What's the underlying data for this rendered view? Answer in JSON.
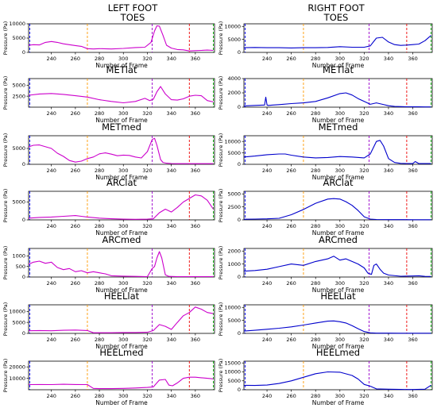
{
  "columns": [
    {
      "title_line1": "LEFT FOOT",
      "title_line2": "TOES",
      "color": "#cc00cc"
    },
    {
      "title_line1": "RIGHT FOOT",
      "title_line2": "TOES",
      "color": "#0000cc"
    }
  ],
  "x_axis": {
    "label": "Number of Frame",
    "range": [
      221,
      376
    ],
    "ticks": [
      240,
      260,
      280,
      300,
      320,
      340,
      360
    ]
  },
  "y_axis_label": "Pressure (Pa)",
  "event_lines": [
    {
      "x": 222,
      "color": "#0000ff",
      "style": "dashed"
    },
    {
      "x": 270,
      "color": "#ff9900",
      "style": "dashed"
    },
    {
      "x": 324,
      "color": "#9900cc",
      "style": "dashed"
    },
    {
      "x": 355,
      "color": "#ee0000",
      "style": "dashed"
    },
    {
      "x": 375,
      "color": "#00aa00",
      "style": "dashed"
    }
  ],
  "chart_data": [
    {
      "type": "line",
      "column": "left",
      "row_title": "",
      "ylabel": "Pressure (Pa)",
      "xlabel": "",
      "ylim": [
        0,
        10000
      ],
      "yticks": [
        0,
        5000,
        10000
      ],
      "series": [
        {
          "x": [
            221,
            225,
            230,
            235,
            240,
            245,
            250,
            255,
            260,
            265,
            270,
            275,
            280,
            290,
            300,
            310,
            318,
            323,
            326,
            328,
            330,
            333,
            336,
            340,
            345,
            350,
            355,
            360,
            365,
            370,
            375
          ],
          "y": [
            2500,
            2700,
            2600,
            3500,
            3800,
            3500,
            3000,
            2700,
            2400,
            2100,
            1300,
            1200,
            1300,
            1200,
            1400,
            1700,
            1800,
            3500,
            7500,
            9300,
            9200,
            6000,
            2500,
            1500,
            1000,
            900,
            500,
            600,
            700,
            800,
            700
          ]
        }
      ]
    },
    {
      "type": "line",
      "column": "right",
      "row_title": "",
      "ylabel": "Pressure (Pa)",
      "xlabel": "",
      "ylim": [
        0,
        11000
      ],
      "yticks": [
        0,
        5000,
        10000
      ],
      "series": [
        {
          "x": [
            221,
            230,
            240,
            250,
            260,
            270,
            280,
            290,
            300,
            310,
            320,
            325,
            330,
            335,
            340,
            345,
            350,
            355,
            360,
            365,
            370,
            375
          ],
          "y": [
            1800,
            1900,
            1800,
            1800,
            1700,
            1800,
            1800,
            1900,
            2200,
            2000,
            2000,
            2500,
            5500,
            5800,
            4000,
            3000,
            2700,
            2800,
            3000,
            3200,
            4500,
            6500
          ]
        }
      ]
    },
    {
      "type": "line",
      "column": "left",
      "row_title": "METlat",
      "ylabel": "Pressure (Pa)",
      "xlabel": "",
      "ylim": [
        0,
        6500
      ],
      "yticks": [
        2500,
        5000
      ],
      "series": [
        {
          "x": [
            221,
            230,
            240,
            250,
            260,
            270,
            280,
            290,
            300,
            310,
            318,
            322,
            325,
            328,
            331,
            335,
            340,
            345,
            350,
            355,
            360,
            365,
            370,
            375
          ],
          "y": [
            2700,
            3000,
            3100,
            2900,
            2600,
            2300,
            1700,
            1300,
            1000,
            1300,
            2000,
            1500,
            1800,
            3500,
            4700,
            3000,
            1700,
            1600,
            1900,
            2500,
            2700,
            2600,
            1500,
            1200
          ]
        }
      ]
    },
    {
      "type": "line",
      "column": "right",
      "row_title": "METlat",
      "ylabel": "Pressure (Pa)",
      "xlabel": "",
      "ylim": [
        0,
        4000
      ],
      "yticks": [
        0,
        2000,
        4000
      ],
      "series": [
        {
          "x": [
            221,
            230,
            238,
            239,
            240,
            241,
            245,
            250,
            260,
            270,
            280,
            290,
            300,
            305,
            310,
            315,
            320,
            325,
            330,
            335,
            340,
            345,
            355,
            360,
            365,
            370,
            375
          ],
          "y": [
            180,
            250,
            300,
            1400,
            300,
            250,
            300,
            350,
            500,
            600,
            800,
            1300,
            1900,
            2000,
            1700,
            1200,
            800,
            400,
            600,
            400,
            200,
            100,
            60,
            50,
            40,
            30,
            30
          ]
        }
      ]
    },
    {
      "type": "line",
      "column": "left",
      "row_title": "METmed",
      "ylabel": "Pressure (Pa)",
      "xlabel": "",
      "ylim": [
        0,
        9000
      ],
      "yticks": [
        0,
        5000
      ],
      "series": [
        {
          "x": [
            221,
            225,
            230,
            240,
            245,
            250,
            255,
            260,
            265,
            270,
            275,
            280,
            285,
            290,
            295,
            300,
            305,
            310,
            315,
            320,
            324,
            326,
            328,
            331,
            333,
            336,
            340,
            345,
            350,
            360,
            375
          ],
          "y": [
            5500,
            6000,
            6100,
            5000,
            3500,
            2500,
            1200,
            700,
            1000,
            1800,
            2300,
            3300,
            3600,
            3200,
            2700,
            2900,
            2800,
            2300,
            2000,
            4000,
            7800,
            8200,
            6000,
            1500,
            600,
            350,
            250,
            200,
            200,
            200,
            200
          ]
        }
      ]
    },
    {
      "type": "line",
      "column": "right",
      "row_title": "METmed",
      "ylabel": "Pressure (Pa)",
      "xlabel": "",
      "ylim": [
        0,
        12500
      ],
      "yticks": [
        0,
        5000,
        10000
      ],
      "series": [
        {
          "x": [
            221,
            230,
            240,
            250,
            255,
            260,
            270,
            280,
            290,
            300,
            310,
            320,
            325,
            330,
            333,
            336,
            340,
            345,
            350,
            355,
            360,
            362,
            365,
            370,
            375
          ],
          "y": [
            3200,
            3600,
            4200,
            4500,
            4500,
            4000,
            3200,
            2800,
            3000,
            3400,
            3200,
            2800,
            4500,
            10000,
            10500,
            8000,
            2500,
            800,
            400,
            300,
            300,
            1200,
            300,
            300,
            300
          ]
        }
      ]
    },
    {
      "type": "line",
      "column": "left",
      "row_title": "ARClat",
      "ylabel": "Pressure (Pa)",
      "xlabel": "",
      "ylim": [
        0,
        8000
      ],
      "yticks": [
        0,
        5000
      ],
      "series": [
        {
          "x": [
            221,
            230,
            240,
            250,
            260,
            265,
            270,
            280,
            290,
            300,
            310,
            320,
            325,
            330,
            335,
            340,
            345,
            350,
            355,
            360,
            365,
            370,
            375
          ],
          "y": [
            500,
            700,
            800,
            1000,
            1200,
            1000,
            800,
            500,
            300,
            200,
            150,
            200,
            300,
            2000,
            3000,
            2200,
            3500,
            5000,
            6000,
            7000,
            6700,
            5500,
            3000
          ]
        }
      ]
    },
    {
      "type": "line",
      "column": "right",
      "row_title": "ARClat",
      "ylabel": "Pressure (Pa)",
      "xlabel": "",
      "ylim": [
        0,
        5500
      ],
      "yticks": [
        0,
        2500,
        5000
      ],
      "series": [
        {
          "x": [
            221,
            230,
            240,
            250,
            260,
            270,
            280,
            290,
            295,
            300,
            305,
            310,
            315,
            320,
            325,
            330,
            340,
            350,
            360,
            375
          ],
          "y": [
            120,
            150,
            200,
            300,
            1000,
            2000,
            3200,
            4000,
            4100,
            4000,
            3500,
            2800,
            1800,
            600,
            150,
            80,
            50,
            40,
            30,
            30
          ]
        }
      ]
    },
    {
      "type": "line",
      "column": "left",
      "row_title": "ARCmed",
      "ylabel": "Pressure (Pa)",
      "xlabel": "",
      "ylim": [
        0,
        1350
      ],
      "yticks": [
        0,
        500,
        1000
      ],
      "series": [
        {
          "x": [
            221,
            225,
            230,
            235,
            240,
            245,
            250,
            255,
            260,
            265,
            270,
            275,
            280,
            285,
            290,
            300,
            310,
            320,
            324,
            326,
            328,
            330,
            332,
            335,
            338,
            345,
            355,
            365,
            375
          ],
          "y": [
            600,
            700,
            750,
            650,
            700,
            450,
            350,
            400,
            250,
            300,
            200,
            250,
            200,
            150,
            60,
            40,
            30,
            20,
            400,
            500,
            900,
            1200,
            900,
            100,
            30,
            20,
            20,
            20,
            20
          ]
        }
      ]
    },
    {
      "type": "line",
      "column": "right",
      "row_title": "ARCmed",
      "ylabel": "Pressure (Pa)",
      "xlabel": "",
      "ylim": [
        0,
        2200
      ],
      "yticks": [
        0,
        1000,
        2000
      ],
      "series": [
        {
          "x": [
            221,
            230,
            240,
            250,
            260,
            270,
            280,
            290,
            295,
            300,
            305,
            310,
            315,
            320,
            323,
            326,
            328,
            330,
            333,
            336,
            340,
            350,
            360,
            365,
            370,
            375
          ],
          "y": [
            450,
            500,
            600,
            800,
            1000,
            900,
            1200,
            1400,
            1600,
            1300,
            1400,
            1200,
            1000,
            700,
            300,
            200,
            900,
            1000,
            600,
            300,
            150,
            60,
            80,
            100,
            50,
            40
          ]
        }
      ]
    },
    {
      "type": "line",
      "column": "left",
      "row_title": "HEELlat",
      "ylabel": "Pressure (Pa)",
      "xlabel": "",
      "ylim": [
        0,
        13000
      ],
      "yticks": [
        0,
        5000,
        10000
      ],
      "series": [
        {
          "x": [
            221,
            230,
            240,
            250,
            260,
            270,
            275,
            280,
            290,
            300,
            310,
            320,
            325,
            330,
            335,
            340,
            345,
            350,
            355,
            360,
            365,
            370,
            375
          ],
          "y": [
            1200,
            1300,
            1200,
            1400,
            1500,
            1300,
            300,
            300,
            300,
            400,
            400,
            500,
            1300,
            4000,
            3200,
            1800,
            5000,
            8000,
            9500,
            12000,
            11000,
            9500,
            9000
          ]
        }
      ]
    },
    {
      "type": "line",
      "column": "right",
      "row_title": "HEELlat",
      "ylabel": "Pressure (Pa)",
      "xlabel": "",
      "ylim": [
        0,
        11000
      ],
      "yticks": [
        0,
        5000,
        10000
      ],
      "series": [
        {
          "x": [
            221,
            230,
            240,
            250,
            260,
            270,
            280,
            290,
            295,
            300,
            305,
            310,
            315,
            320,
            325,
            330,
            340,
            350,
            360,
            375
          ],
          "y": [
            900,
            1200,
            1600,
            2000,
            2500,
            3200,
            4000,
            4700,
            4800,
            4500,
            4000,
            3000,
            1800,
            700,
            200,
            100,
            80,
            60,
            60,
            60
          ]
        }
      ]
    },
    {
      "type": "line",
      "column": "left",
      "row_title": "HEELmed",
      "ylabel": "Pressure (Pa)",
      "xlabel": "",
      "ylim": [
        0,
        25000
      ],
      "yticks": [
        10000,
        20000
      ],
      "series": [
        {
          "x": [
            221,
            230,
            240,
            250,
            260,
            270,
            275,
            280,
            290,
            300,
            310,
            320,
            325,
            330,
            335,
            338,
            341,
            345,
            350,
            355,
            360,
            365,
            370,
            375
          ],
          "y": [
            4500,
            4600,
            4500,
            4800,
            4600,
            4500,
            1200,
            1000,
            1000,
            1200,
            1500,
            2000,
            2500,
            8500,
            9000,
            4000,
            3500,
            6000,
            10000,
            11000,
            11000,
            10500,
            10000,
            9500
          ]
        }
      ]
    },
    {
      "type": "line",
      "column": "right",
      "row_title": "HEELmed",
      "ylabel": "Pressure (Pa)",
      "xlabel": "",
      "ylim": [
        0,
        16000
      ],
      "yticks": [
        0,
        5000,
        10000,
        15000
      ],
      "series": [
        {
          "x": [
            221,
            230,
            240,
            250,
            260,
            270,
            280,
            290,
            300,
            310,
            315,
            320,
            325,
            330,
            340,
            350,
            360,
            370,
            375
          ],
          "y": [
            2500,
            2400,
            2600,
            3500,
            5000,
            7000,
            9000,
            10000,
            9800,
            8000,
            6000,
            3000,
            2000,
            500,
            300,
            200,
            150,
            300,
            2500
          ]
        }
      ]
    }
  ]
}
